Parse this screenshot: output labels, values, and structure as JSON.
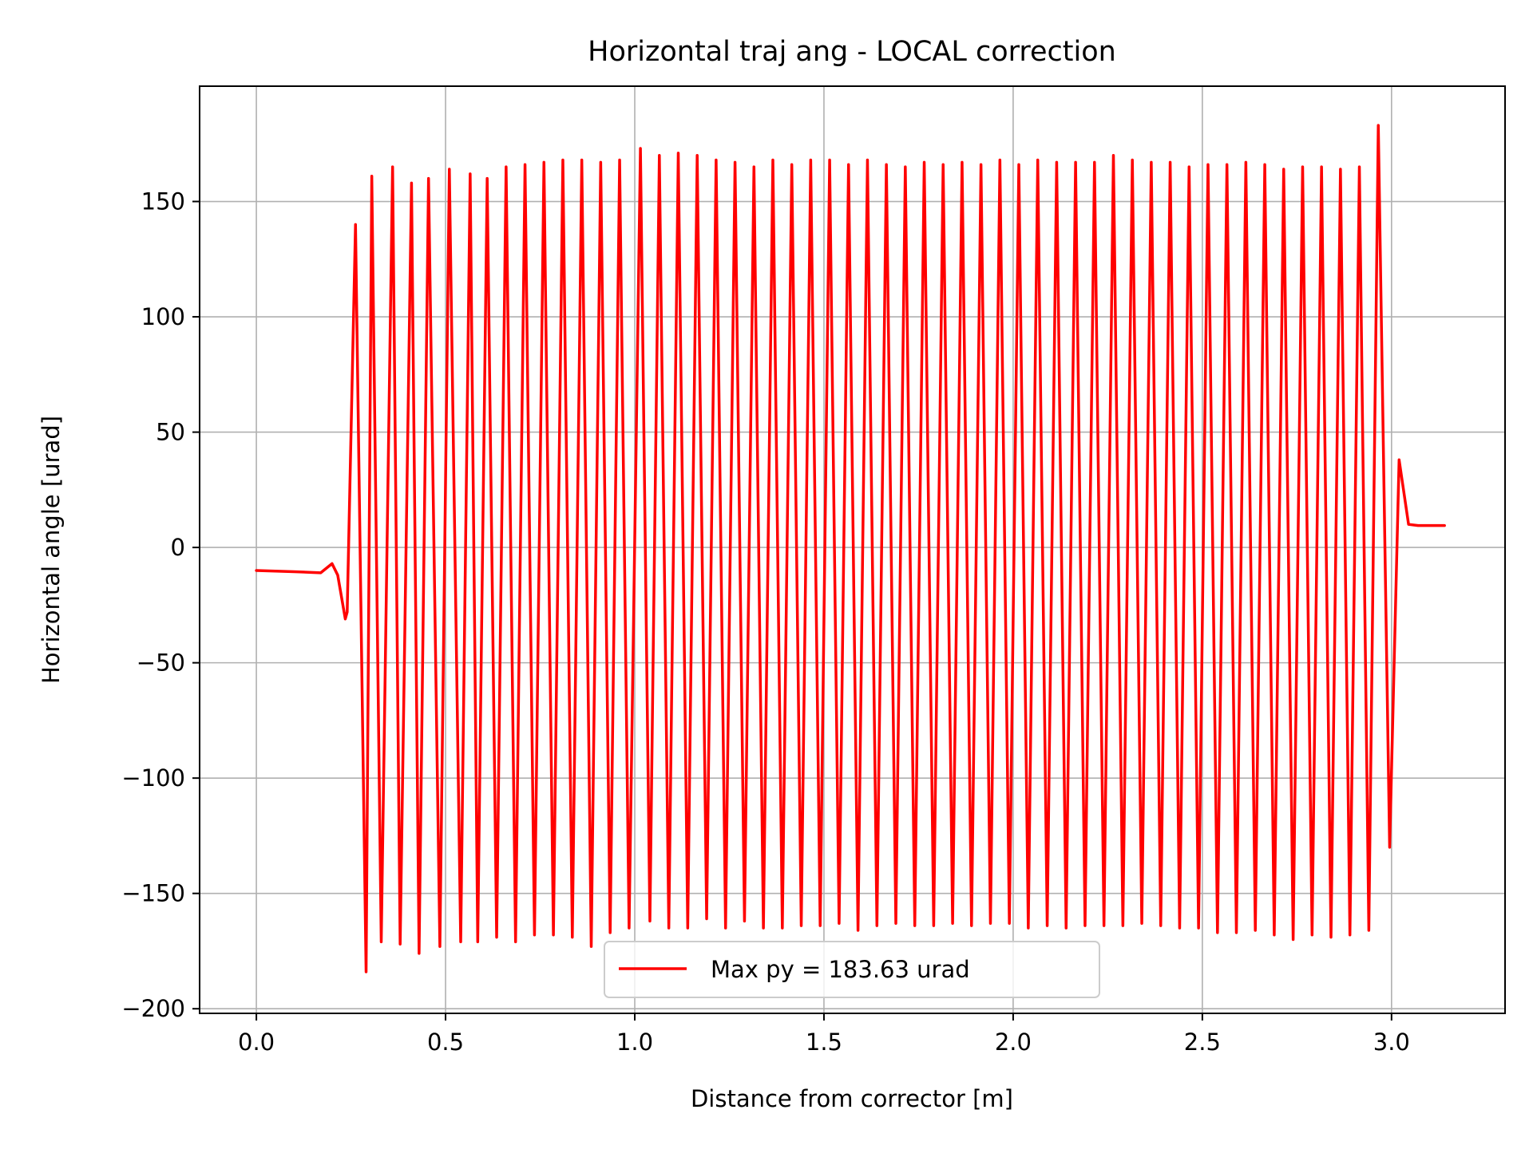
{
  "chart_data": {
    "type": "line",
    "title": "Horizontal traj ang - LOCAL correction",
    "xlabel": "Distance from corrector [m]",
    "ylabel": "Horizontal angle [urad]",
    "xlim": [
      -0.15,
      3.3
    ],
    "ylim": [
      -202,
      200
    ],
    "xticks": [
      0.0,
      0.5,
      1.0,
      1.5,
      2.0,
      2.5,
      3.0
    ],
    "xtick_labels": [
      "0.0",
      "0.5",
      "1.0",
      "1.5",
      "2.0",
      "2.5",
      "3.0"
    ],
    "yticks": [
      150,
      100,
      50,
      0,
      -50,
      -100,
      -150,
      -200
    ],
    "ytick_labels": [
      "150",
      "100",
      "50",
      "0",
      "−50",
      "−100",
      "−150",
      "−200"
    ],
    "grid": true,
    "legend_position": "lower-center",
    "series": [
      {
        "name": "Max py = 183.63 urad",
        "color": "#ff0000",
        "points": [
          [
            0.0,
            -10
          ],
          [
            0.1,
            -10.5
          ],
          [
            0.17,
            -11
          ],
          [
            0.2,
            -7
          ],
          [
            0.215,
            -12
          ],
          [
            0.235,
            -31
          ],
          [
            0.24,
            -28
          ],
          [
            0.262,
            140
          ],
          [
            0.29,
            -184
          ],
          [
            0.305,
            161
          ],
          [
            0.33,
            -171
          ],
          [
            0.36,
            165
          ],
          [
            0.38,
            -172
          ],
          [
            0.41,
            158
          ],
          [
            0.43,
            -176
          ],
          [
            0.455,
            160
          ],
          [
            0.485,
            -173
          ],
          [
            0.51,
            164
          ],
          [
            0.54,
            -171
          ],
          [
            0.565,
            162
          ],
          [
            0.585,
            -171
          ],
          [
            0.61,
            160
          ],
          [
            0.635,
            -169
          ],
          [
            0.66,
            165
          ],
          [
            0.685,
            -171
          ],
          [
            0.71,
            166
          ],
          [
            0.735,
            -168
          ],
          [
            0.76,
            167
          ],
          [
            0.785,
            -168
          ],
          [
            0.81,
            168
          ],
          [
            0.835,
            -169
          ],
          [
            0.86,
            168
          ],
          [
            0.885,
            -173
          ],
          [
            0.91,
            167
          ],
          [
            0.935,
            -167
          ],
          [
            0.96,
            168
          ],
          [
            0.985,
            -165
          ],
          [
            1.015,
            173
          ],
          [
            1.04,
            -162
          ],
          [
            1.065,
            170
          ],
          [
            1.09,
            -165
          ],
          [
            1.115,
            171
          ],
          [
            1.14,
            -165
          ],
          [
            1.165,
            170
          ],
          [
            1.19,
            -161
          ],
          [
            1.215,
            168
          ],
          [
            1.24,
            -165
          ],
          [
            1.265,
            167
          ],
          [
            1.29,
            -162
          ],
          [
            1.315,
            165
          ],
          [
            1.34,
            -165
          ],
          [
            1.365,
            168
          ],
          [
            1.39,
            -165
          ],
          [
            1.415,
            166
          ],
          [
            1.44,
            -164
          ],
          [
            1.465,
            168
          ],
          [
            1.49,
            -164
          ],
          [
            1.515,
            168
          ],
          [
            1.54,
            -163
          ],
          [
            1.565,
            166
          ],
          [
            1.59,
            -166
          ],
          [
            1.615,
            168
          ],
          [
            1.64,
            -164
          ],
          [
            1.665,
            166
          ],
          [
            1.69,
            -163
          ],
          [
            1.715,
            165
          ],
          [
            1.74,
            -164
          ],
          [
            1.765,
            167
          ],
          [
            1.79,
            -164
          ],
          [
            1.815,
            166
          ],
          [
            1.84,
            -163
          ],
          [
            1.865,
            167
          ],
          [
            1.89,
            -164
          ],
          [
            1.915,
            166
          ],
          [
            1.94,
            -163
          ],
          [
            1.965,
            168
          ],
          [
            1.99,
            -163
          ],
          [
            2.015,
            166
          ],
          [
            2.04,
            -165
          ],
          [
            2.065,
            168
          ],
          [
            2.09,
            -164
          ],
          [
            2.115,
            167
          ],
          [
            2.14,
            -165
          ],
          [
            2.165,
            167
          ],
          [
            2.19,
            -164
          ],
          [
            2.215,
            167
          ],
          [
            2.24,
            -164
          ],
          [
            2.265,
            170
          ],
          [
            2.29,
            -164
          ],
          [
            2.315,
            168
          ],
          [
            2.34,
            -163
          ],
          [
            2.365,
            167
          ],
          [
            2.39,
            -164
          ],
          [
            2.415,
            167
          ],
          [
            2.44,
            -165
          ],
          [
            2.465,
            165
          ],
          [
            2.49,
            -165
          ],
          [
            2.515,
            166
          ],
          [
            2.54,
            -167
          ],
          [
            2.565,
            166
          ],
          [
            2.59,
            -167
          ],
          [
            2.615,
            167
          ],
          [
            2.64,
            -166
          ],
          [
            2.665,
            166
          ],
          [
            2.69,
            -168
          ],
          [
            2.715,
            164
          ],
          [
            2.74,
            -170
          ],
          [
            2.765,
            165
          ],
          [
            2.79,
            -168
          ],
          [
            2.815,
            165
          ],
          [
            2.84,
            -169
          ],
          [
            2.865,
            164
          ],
          [
            2.89,
            -168
          ],
          [
            2.915,
            165
          ],
          [
            2.94,
            -166
          ],
          [
            2.965,
            183
          ],
          [
            2.995,
            -130
          ],
          [
            3.02,
            38
          ],
          [
            3.045,
            10
          ],
          [
            3.07,
            9.5
          ],
          [
            3.1,
            9.5
          ],
          [
            3.14,
            9.5
          ]
        ]
      }
    ]
  }
}
